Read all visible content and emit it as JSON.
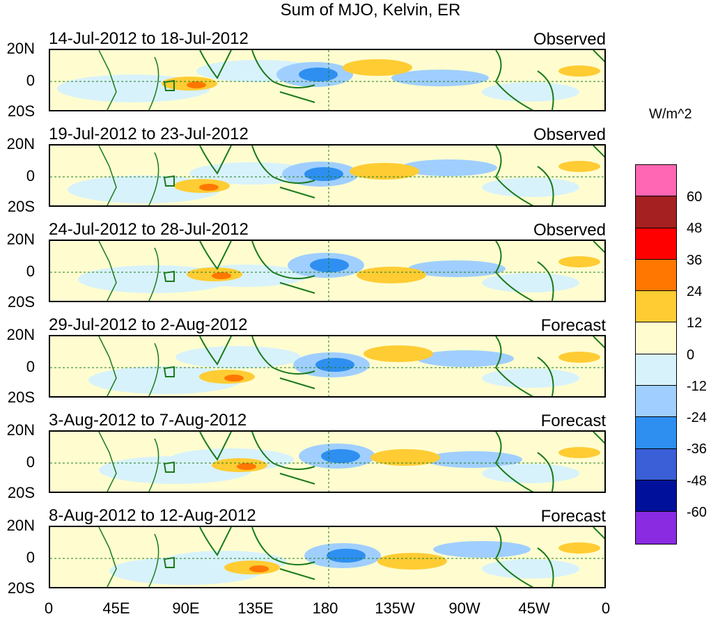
{
  "title": "Sum of MJO, Kelvin, ER",
  "panels": [
    {
      "dates": "14-Jul-2012 to 18-Jul-2012",
      "status": "Observed"
    },
    {
      "dates": "19-Jul-2012 to 23-Jul-2012",
      "status": "Observed"
    },
    {
      "dates": "24-Jul-2012 to 28-Jul-2012",
      "status": "Observed"
    },
    {
      "dates": "29-Jul-2012 to 2-Aug-2012",
      "status": "Forecast"
    },
    {
      "dates": "3-Aug-2012 to 7-Aug-2012",
      "status": "Forecast"
    },
    {
      "dates": "8-Aug-2012 to 12-Aug-2012",
      "status": "Forecast"
    }
  ],
  "lat_labels": [
    "20N",
    "0",
    "20S"
  ],
  "lon_labels": [
    "0",
    "45E",
    "90E",
    "135E",
    "180",
    "135W",
    "90W",
    "45W",
    "0"
  ],
  "colorbar": {
    "units": "W/m^2",
    "labels": [
      "60",
      "48",
      "36",
      "24",
      "12",
      "0",
      "-12",
      "-24",
      "-36",
      "-48",
      "-60"
    ],
    "colors": [
      "#ff66b3",
      "#a52020",
      "#ff0000",
      "#ff7700",
      "#ffcc33",
      "#fffdd0",
      "#d8f2fb",
      "#a0cfff",
      "#2e8ff0",
      "#3a5fd6",
      "#00109a",
      "#8a2be2"
    ]
  }
}
